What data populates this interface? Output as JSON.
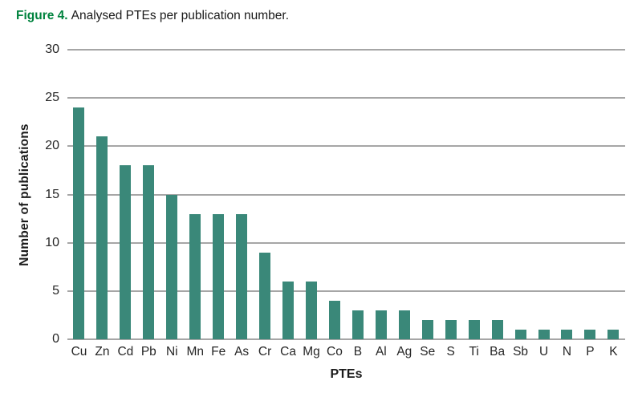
{
  "figure": {
    "label": "Figure 4.",
    "caption": "Analysed PTEs per publication number."
  },
  "chart_data": {
    "type": "bar",
    "title": "Figure 4. Analysed PTEs per publication number.",
    "categories": [
      "Cu",
      "Zn",
      "Cd",
      "Pb",
      "Ni",
      "Mn",
      "Fe",
      "As",
      "Cr",
      "Ca",
      "Mg",
      "Co",
      "B",
      "Al",
      "Ag",
      "Se",
      "S",
      "Ti",
      "Ba",
      "Sb",
      "U",
      "N",
      "P",
      "K"
    ],
    "values": [
      24,
      21,
      18,
      18,
      15,
      13,
      13,
      13,
      9,
      6,
      6,
      4,
      3,
      3,
      3,
      2,
      2,
      2,
      2,
      1,
      1,
      1,
      1,
      1
    ],
    "xlabel": "PTEs",
    "ylabel": "Number of publications",
    "ylim": [
      0,
      30
    ],
    "yticks": [
      0,
      5,
      10,
      15,
      20,
      25,
      30
    ],
    "grid": true,
    "legend": "none",
    "colors": {
      "bar": "#3a8879",
      "gridline": "#a6a6a6",
      "figure_label_green": "#00833e",
      "text": "#262626"
    }
  }
}
